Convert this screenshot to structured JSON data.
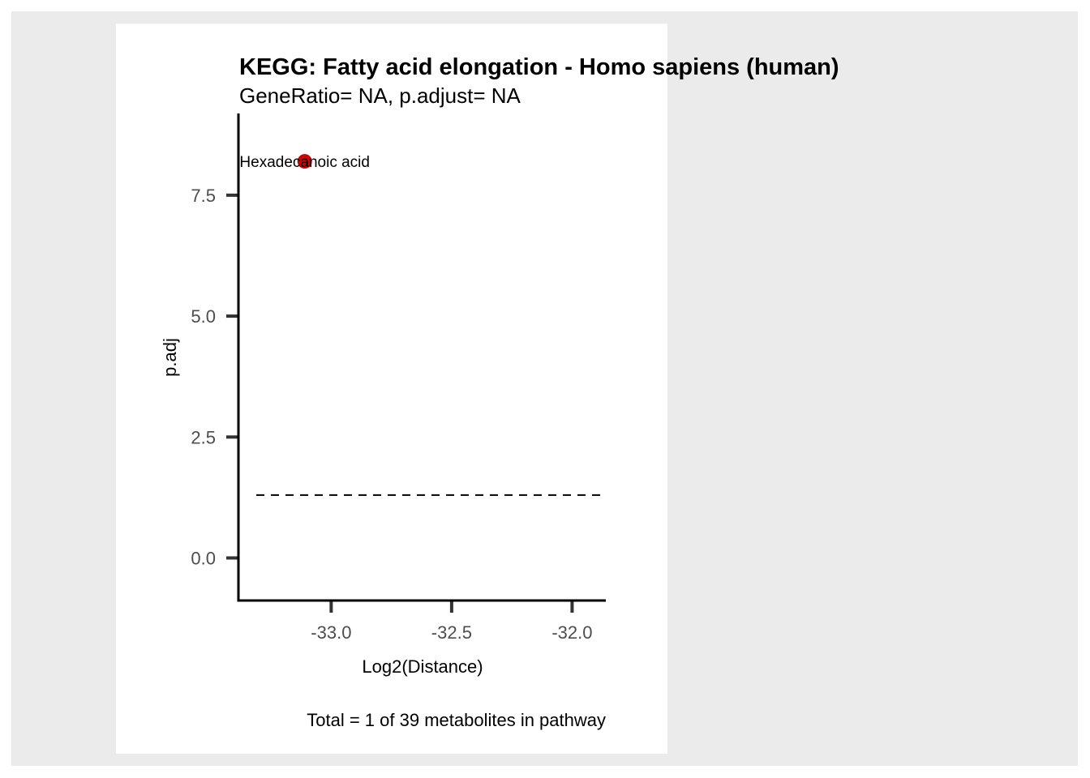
{
  "chart_data": {
    "type": "scatter",
    "title": "KEGG: Fatty acid elongation - Homo sapiens (human)",
    "subtitle": "GeneRatio= NA, p.adjust= NA",
    "xlabel": "Log2(Distance)",
    "ylabel": "p.adj",
    "caption": "Total = 1 of 39 metabolites in pathway",
    "xlim": [
      -33.385,
      -31.86
    ],
    "ylim": [
      -0.88,
      9.19
    ],
    "x_ticks": [
      -33.0,
      -32.5,
      -32.0
    ],
    "x_tick_labels": [
      "-33.0",
      "-32.5",
      "-32.0"
    ],
    "y_ticks": [
      0.0,
      2.5,
      5.0,
      7.5
    ],
    "y_tick_labels": [
      "0.0",
      "2.5",
      "5.0",
      "7.5"
    ],
    "threshold_line": {
      "y": 1.3,
      "style": "dashed"
    },
    "points": [
      {
        "label": "Hexadecanoic acid",
        "x": -33.11,
        "y": 8.2
      }
    ],
    "point_color": "#d40000",
    "grid": false,
    "legend": "none"
  }
}
